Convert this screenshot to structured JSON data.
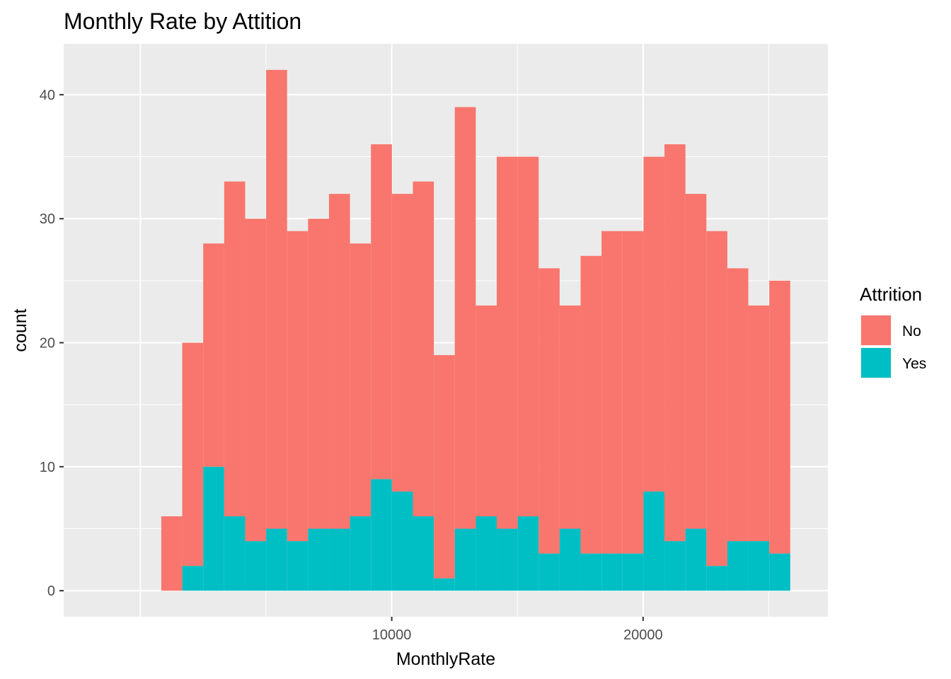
{
  "chart_data": {
    "type": "bar",
    "title": "Monthly Rate by Attition",
    "xlabel": "MonthlyRate",
    "ylabel": "count",
    "stacked": true,
    "bin_width": 834,
    "bin_centers": [
      1250,
      2084,
      2918,
      3752,
      4586,
      5420,
      6254,
      7088,
      7922,
      8756,
      9590,
      10424,
      11258,
      12092,
      12926,
      13760,
      14594,
      15428,
      16262,
      17096,
      17930,
      18764,
      19598,
      20432,
      21266,
      22100,
      22934,
      23768,
      24602,
      25436,
      26270
    ],
    "xlim": [
      -3050,
      27350
    ],
    "ylim": [
      -2.1,
      44.1
    ],
    "x_ticks": [
      10000,
      20000
    ],
    "x_tick_labels": [
      "10000",
      "20000"
    ],
    "y_ticks": [
      0,
      10,
      20,
      30,
      40
    ],
    "y_tick_labels": [
      "0",
      "10",
      "20",
      "30",
      "40"
    ],
    "grid": true,
    "series": [
      {
        "name": "Yes",
        "color": "#00BFC4",
        "values": [
          0,
          2,
          10,
          6,
          4,
          5,
          4,
          5,
          5,
          6,
          9,
          8,
          6,
          1,
          5,
          6,
          5,
          6,
          3,
          5,
          3,
          3,
          3,
          8,
          4,
          5,
          2,
          4,
          4,
          3,
          0
        ]
      },
      {
        "name": "No",
        "color": "#F8766D",
        "values": [
          6,
          18,
          18,
          27,
          26,
          37,
          25,
          25,
          27,
          22,
          27,
          24,
          27,
          18,
          34,
          17,
          30,
          29,
          23,
          18,
          24,
          26,
          26,
          27,
          32,
          27,
          27,
          22,
          19,
          22,
          0
        ]
      }
    ],
    "legend": {
      "title": "Attrition",
      "placement": "right",
      "items": [
        {
          "label": "No",
          "color": "#F8766D"
        },
        {
          "label": "Yes",
          "color": "#00BFC4"
        }
      ]
    },
    "panel_background": "#EBEBEB",
    "grid_color": "#FFFFFF"
  }
}
